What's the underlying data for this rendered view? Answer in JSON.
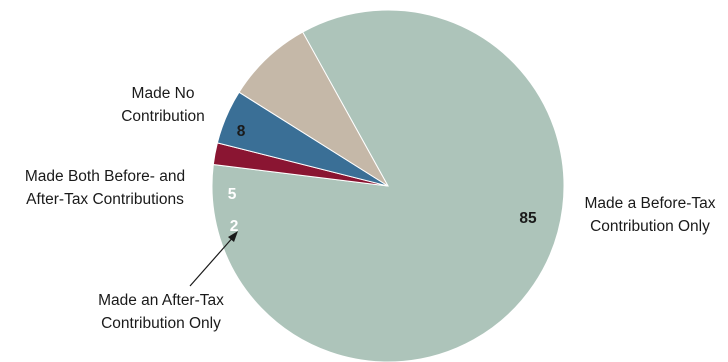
{
  "chart_data": {
    "type": "pie",
    "title": "",
    "slices": [
      {
        "label_lines": [
          "Made a Before-Tax",
          "Contribution Only"
        ],
        "value": 85,
        "value_label": "85",
        "color": "#adc4ba",
        "value_color": "#1a1a1a"
      },
      {
        "label_lines": [
          "Made an After-Tax",
          "Contribution Only"
        ],
        "value": 2,
        "value_label": "2",
        "color": "#8a1532",
        "value_color": "#ffffff"
      },
      {
        "label_lines": [
          "Made Both Before- and",
          "After-Tax Contributions"
        ],
        "value": 5,
        "value_label": "5",
        "color": "#3a6f96",
        "value_color": "#ffffff"
      },
      {
        "label_lines": [
          "Made No",
          "Contribution"
        ],
        "value": 8,
        "value_label": "8",
        "color": "#c5b8a8",
        "value_color": "#1a1a1a"
      }
    ],
    "legend": "none"
  }
}
